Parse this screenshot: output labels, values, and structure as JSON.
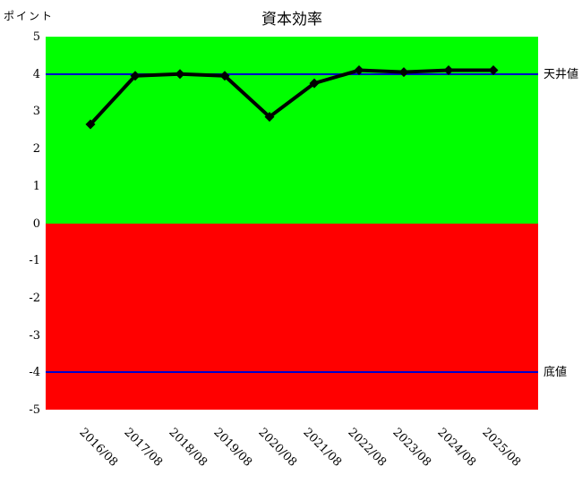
{
  "chart_data": {
    "type": "line",
    "title": "資本効率",
    "ylabel": "ポイント",
    "xlabel": "",
    "categories": [
      "2016/08",
      "2017/08",
      "2018/08",
      "2019/08",
      "2020/08",
      "2021/08",
      "2022/08",
      "2023/08",
      "2024/08",
      "2025/08"
    ],
    "series": [
      {
        "name": "資本効率",
        "color": "#000000",
        "marker": "diamond",
        "values": [
          2.65,
          3.95,
          4.0,
          3.95,
          2.85,
          3.75,
          4.1,
          4.05,
          4.1,
          4.1
        ]
      }
    ],
    "ylim": [
      -5,
      5
    ],
    "yticks": [
      5,
      4,
      3,
      2,
      1,
      0,
      -1,
      -2,
      -3,
      -4,
      -5
    ],
    "zones": [
      {
        "from": 0,
        "to": 5,
        "color": "#00ff00"
      },
      {
        "from": -5,
        "to": 0,
        "color": "#ff0000"
      }
    ],
    "thresholds": [
      {
        "label": "天井値",
        "value": 4,
        "color": "#0000cc"
      },
      {
        "label": "底値",
        "value": -4,
        "color": "#0000cc"
      }
    ],
    "grid": false,
    "legend": "none"
  }
}
